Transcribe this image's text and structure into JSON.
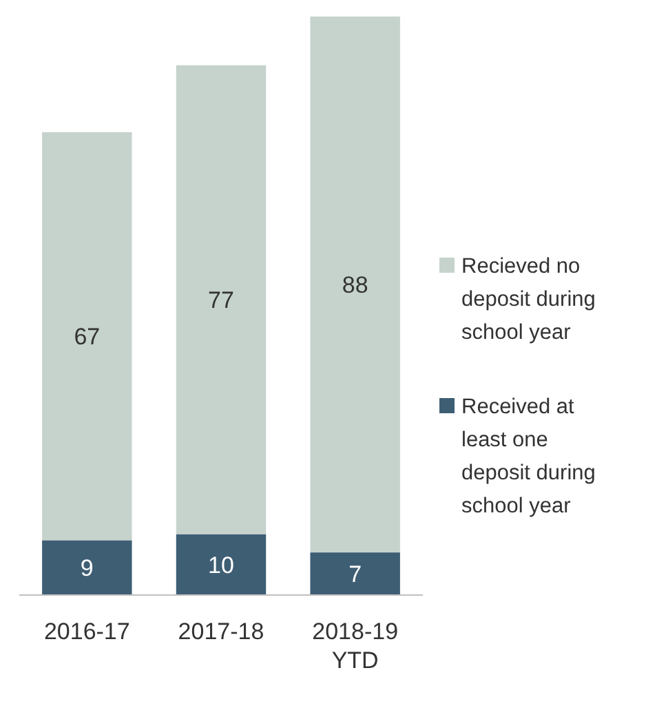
{
  "chart_data": {
    "type": "bar",
    "stacked": true,
    "categories": [
      "2016-17",
      "2017-18",
      "2018-19 YTD"
    ],
    "series": [
      {
        "name": "Received at least one deposit during school year",
        "color": "#3e5e74",
        "values": [
          9,
          10,
          7
        ]
      },
      {
        "name": "Recieved no deposit during school year",
        "color": "#c6d3cd",
        "values": [
          67,
          77,
          88
        ]
      }
    ],
    "data_labels": true,
    "legend": "right"
  }
}
